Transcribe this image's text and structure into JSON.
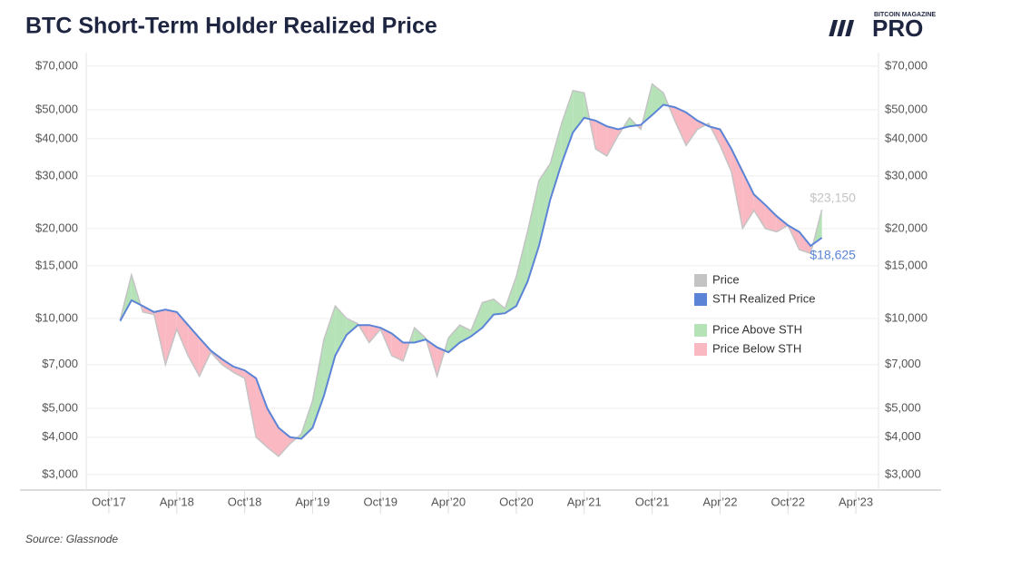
{
  "chart_data": {
    "type": "line",
    "title": "BTC Short-Term Holder Realized Price",
    "source": "Source: Glassnode",
    "logo": {
      "small": "BITCOIN MAGAZINE",
      "large": "PRO"
    },
    "log_scale": true,
    "grid": true,
    "legend": "right",
    "x": [
      "2017-11",
      "2017-12",
      "2018-01",
      "2018-02",
      "2018-03",
      "2018-04",
      "2018-05",
      "2018-06",
      "2018-07",
      "2018-08",
      "2018-09",
      "2018-10",
      "2018-11",
      "2018-12",
      "2019-01",
      "2019-02",
      "2019-03",
      "2019-04",
      "2019-05",
      "2019-06",
      "2019-07",
      "2019-08",
      "2019-09",
      "2019-10",
      "2019-11",
      "2019-12",
      "2020-01",
      "2020-02",
      "2020-03",
      "2020-04",
      "2020-05",
      "2020-06",
      "2020-07",
      "2020-08",
      "2020-09",
      "2020-10",
      "2020-11",
      "2020-12",
      "2021-01",
      "2021-02",
      "2021-03",
      "2021-04",
      "2021-05",
      "2021-06",
      "2021-07",
      "2021-08",
      "2021-09",
      "2021-10",
      "2021-11",
      "2021-12",
      "2022-01",
      "2022-02",
      "2022-03",
      "2022-04",
      "2022-05",
      "2022-06",
      "2022-07",
      "2022-08",
      "2022-09",
      "2022-10",
      "2022-11",
      "2022-12",
      "2023-01"
    ],
    "series": [
      {
        "name": "Price",
        "color": "#c4c4c4",
        "values": [
          9900,
          14000,
          10500,
          10300,
          7000,
          9200,
          7500,
          6400,
          7700,
          7000,
          6600,
          6300,
          4000,
          3700,
          3450,
          3800,
          4100,
          5300,
          8500,
          11000,
          10000,
          9600,
          8300,
          9200,
          7500,
          7200,
          9300,
          8600,
          6400,
          8600,
          9500,
          9100,
          11300,
          11600,
          10800,
          13800,
          19600,
          29000,
          33000,
          45000,
          58000,
          57000,
          37000,
          35000,
          41000,
          47000,
          43000,
          61000,
          57000,
          46000,
          38000,
          43000,
          45000,
          38000,
          31000,
          20000,
          23000,
          20000,
          19500,
          20500,
          17000,
          16500,
          23150
        ],
        "value_labels": [
          null,
          null,
          null,
          null,
          null,
          null,
          null,
          null,
          null,
          null,
          null,
          null,
          null,
          null,
          null,
          null,
          null,
          null,
          null,
          null,
          null,
          null,
          null,
          null,
          null,
          null,
          null,
          null,
          null,
          null,
          null,
          null,
          null,
          null,
          null,
          null,
          null,
          null,
          null,
          null,
          null,
          null,
          null,
          null,
          null,
          null,
          null,
          null,
          null,
          null,
          null,
          null,
          null,
          null,
          null,
          null,
          null,
          null,
          null,
          null,
          null,
          null,
          "$23,150"
        ]
      },
      {
        "name": "STH Realized Price",
        "color": "#5b84d6",
        "values": [
          9800,
          11500,
          11000,
          10500,
          10700,
          10500,
          9500,
          8600,
          7800,
          7300,
          6900,
          6700,
          6300,
          5000,
          4300,
          4000,
          3950,
          4300,
          5500,
          7500,
          8800,
          9500,
          9500,
          9300,
          8900,
          8300,
          8300,
          8500,
          8000,
          7700,
          8300,
          8700,
          9300,
          10300,
          10400,
          11000,
          13300,
          17500,
          25000,
          33000,
          42000,
          47000,
          46000,
          44000,
          43000,
          44000,
          44500,
          48000,
          52000,
          51000,
          49000,
          46000,
          44000,
          43000,
          37000,
          31000,
          26000,
          24000,
          22000,
          20500,
          19500,
          17500,
          18625
        ],
        "value_labels": [
          null,
          null,
          null,
          null,
          null,
          null,
          null,
          null,
          null,
          null,
          null,
          null,
          null,
          null,
          null,
          null,
          null,
          null,
          null,
          null,
          null,
          null,
          null,
          null,
          null,
          null,
          null,
          null,
          null,
          null,
          null,
          null,
          null,
          null,
          null,
          null,
          null,
          null,
          null,
          null,
          null,
          null,
          null,
          null,
          null,
          null,
          null,
          null,
          null,
          null,
          null,
          null,
          null,
          null,
          null,
          null,
          null,
          null,
          null,
          null,
          null,
          null,
          "$18,625"
        ]
      }
    ],
    "fills": [
      {
        "name": "Price Above STH",
        "color": "#b5e3b7"
      },
      {
        "name": "Price Below STH",
        "color": "#f9b8c2"
      }
    ],
    "xlim": [
      "2017-08",
      "2023-06"
    ],
    "xticks": [
      {
        "value": "2017-10",
        "label": "Oct’17"
      },
      {
        "value": "2018-04",
        "label": "Apr’18"
      },
      {
        "value": "2018-10",
        "label": "Oct’18"
      },
      {
        "value": "2019-04",
        "label": "Apr’19"
      },
      {
        "value": "2019-10",
        "label": "Oct’19"
      },
      {
        "value": "2020-04",
        "label": "Apr’20"
      },
      {
        "value": "2020-10",
        "label": "Oct’20"
      },
      {
        "value": "2021-04",
        "label": "Apr’21"
      },
      {
        "value": "2021-10",
        "label": "Oct’21"
      },
      {
        "value": "2022-04",
        "label": "Apr’22"
      },
      {
        "value": "2022-10",
        "label": "Oct’22"
      },
      {
        "value": "2023-04",
        "label": "Apr’23"
      }
    ],
    "ylim": [
      2660,
      77700
    ],
    "yticks": [
      {
        "value": 3000,
        "label": "$3,000"
      },
      {
        "value": 4000,
        "label": "$4,000"
      },
      {
        "value": 5000,
        "label": "$5,000"
      },
      {
        "value": 7000,
        "label": "$7,000"
      },
      {
        "value": 10000,
        "label": "$10,000"
      },
      {
        "value": 15000,
        "label": "$15,000"
      },
      {
        "value": 20000,
        "label": "$20,000"
      },
      {
        "value": 30000,
        "label": "$30,000"
      },
      {
        "value": 40000,
        "label": "$40,000"
      },
      {
        "value": 50000,
        "label": "$50,000"
      },
      {
        "value": 70000,
        "label": "$70,000"
      }
    ]
  }
}
